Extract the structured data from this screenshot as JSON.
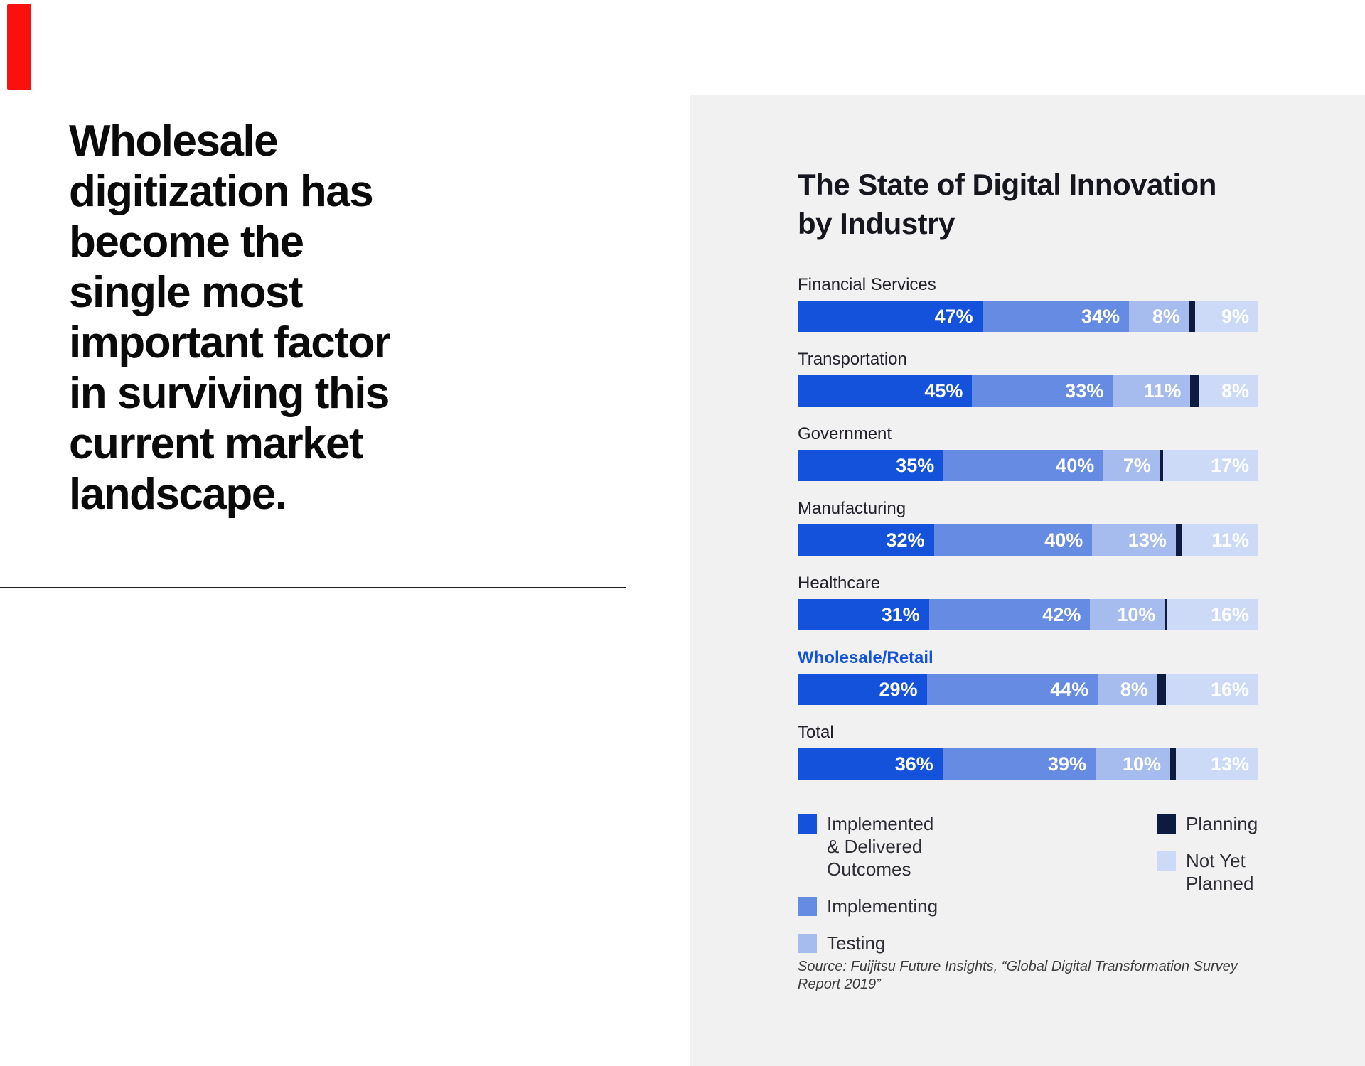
{
  "accent": {
    "color": "#FA100C"
  },
  "headline": {
    "lines": [
      "Wholesale",
      "digitization has",
      "become the",
      "single most",
      "important factor",
      "in surviving this",
      "current market",
      "landscape."
    ]
  },
  "panel": {
    "background": "#F1F1F2"
  },
  "chart": {
    "title_lines": [
      "The State of Digital Innovation",
      "by Industry"
    ],
    "source_lines": [
      "Source: Fuijitsu Future Insights, “Global Digital Transformation Survey",
      "Report 2019”"
    ],
    "highlight_label_color": "#1452DC",
    "label_color": "#21212B"
  },
  "chart_data": {
    "type": "bar",
    "orientation": "horizontal",
    "stacked": true,
    "title": "The State of Digital Innovation by Industry",
    "categories": [
      "Financial Services",
      "Transportation",
      "Government",
      "Manufacturing",
      "Healthcare",
      "Wholesale/Retail",
      "Total"
    ],
    "highlight_category": "Wholesale/Retail",
    "unit": "%",
    "xlim": [
      0,
      100
    ],
    "grid": false,
    "legend_position": "bottom",
    "series": [
      {
        "name": "Implemented & Delivered Outcomes",
        "color": "#1452DC",
        "show_labels": true,
        "values": [
          47,
          45,
          35,
          32,
          31,
          29,
          36
        ]
      },
      {
        "name": "Implementing",
        "color": "#668BE3",
        "show_labels": true,
        "values": [
          34,
          33,
          40,
          40,
          42,
          44,
          39
        ]
      },
      {
        "name": "Testing",
        "color": "#A6BCEF",
        "show_labels": true,
        "values": [
          8,
          11,
          7,
          13,
          10,
          8,
          10
        ]
      },
      {
        "name": "Planning",
        "color": "#0D1B3E",
        "show_labels": false,
        "values": [
          2,
          3,
          1,
          2,
          1,
          3,
          2
        ]
      },
      {
        "name": "Not Yet Planned",
        "color": "#CCDAF7",
        "show_labels": true,
        "values": [
          9,
          8,
          17,
          11,
          16,
          16,
          13
        ]
      }
    ],
    "legend_columns": [
      [
        "Implemented & Delivered Outcomes",
        "Implementing",
        "Testing"
      ],
      [
        "Planning",
        "Not Yet Planned"
      ]
    ],
    "source": "Source: Fuijitsu Future Insights, “Global Digital Transformation Survey Report 2019”"
  }
}
